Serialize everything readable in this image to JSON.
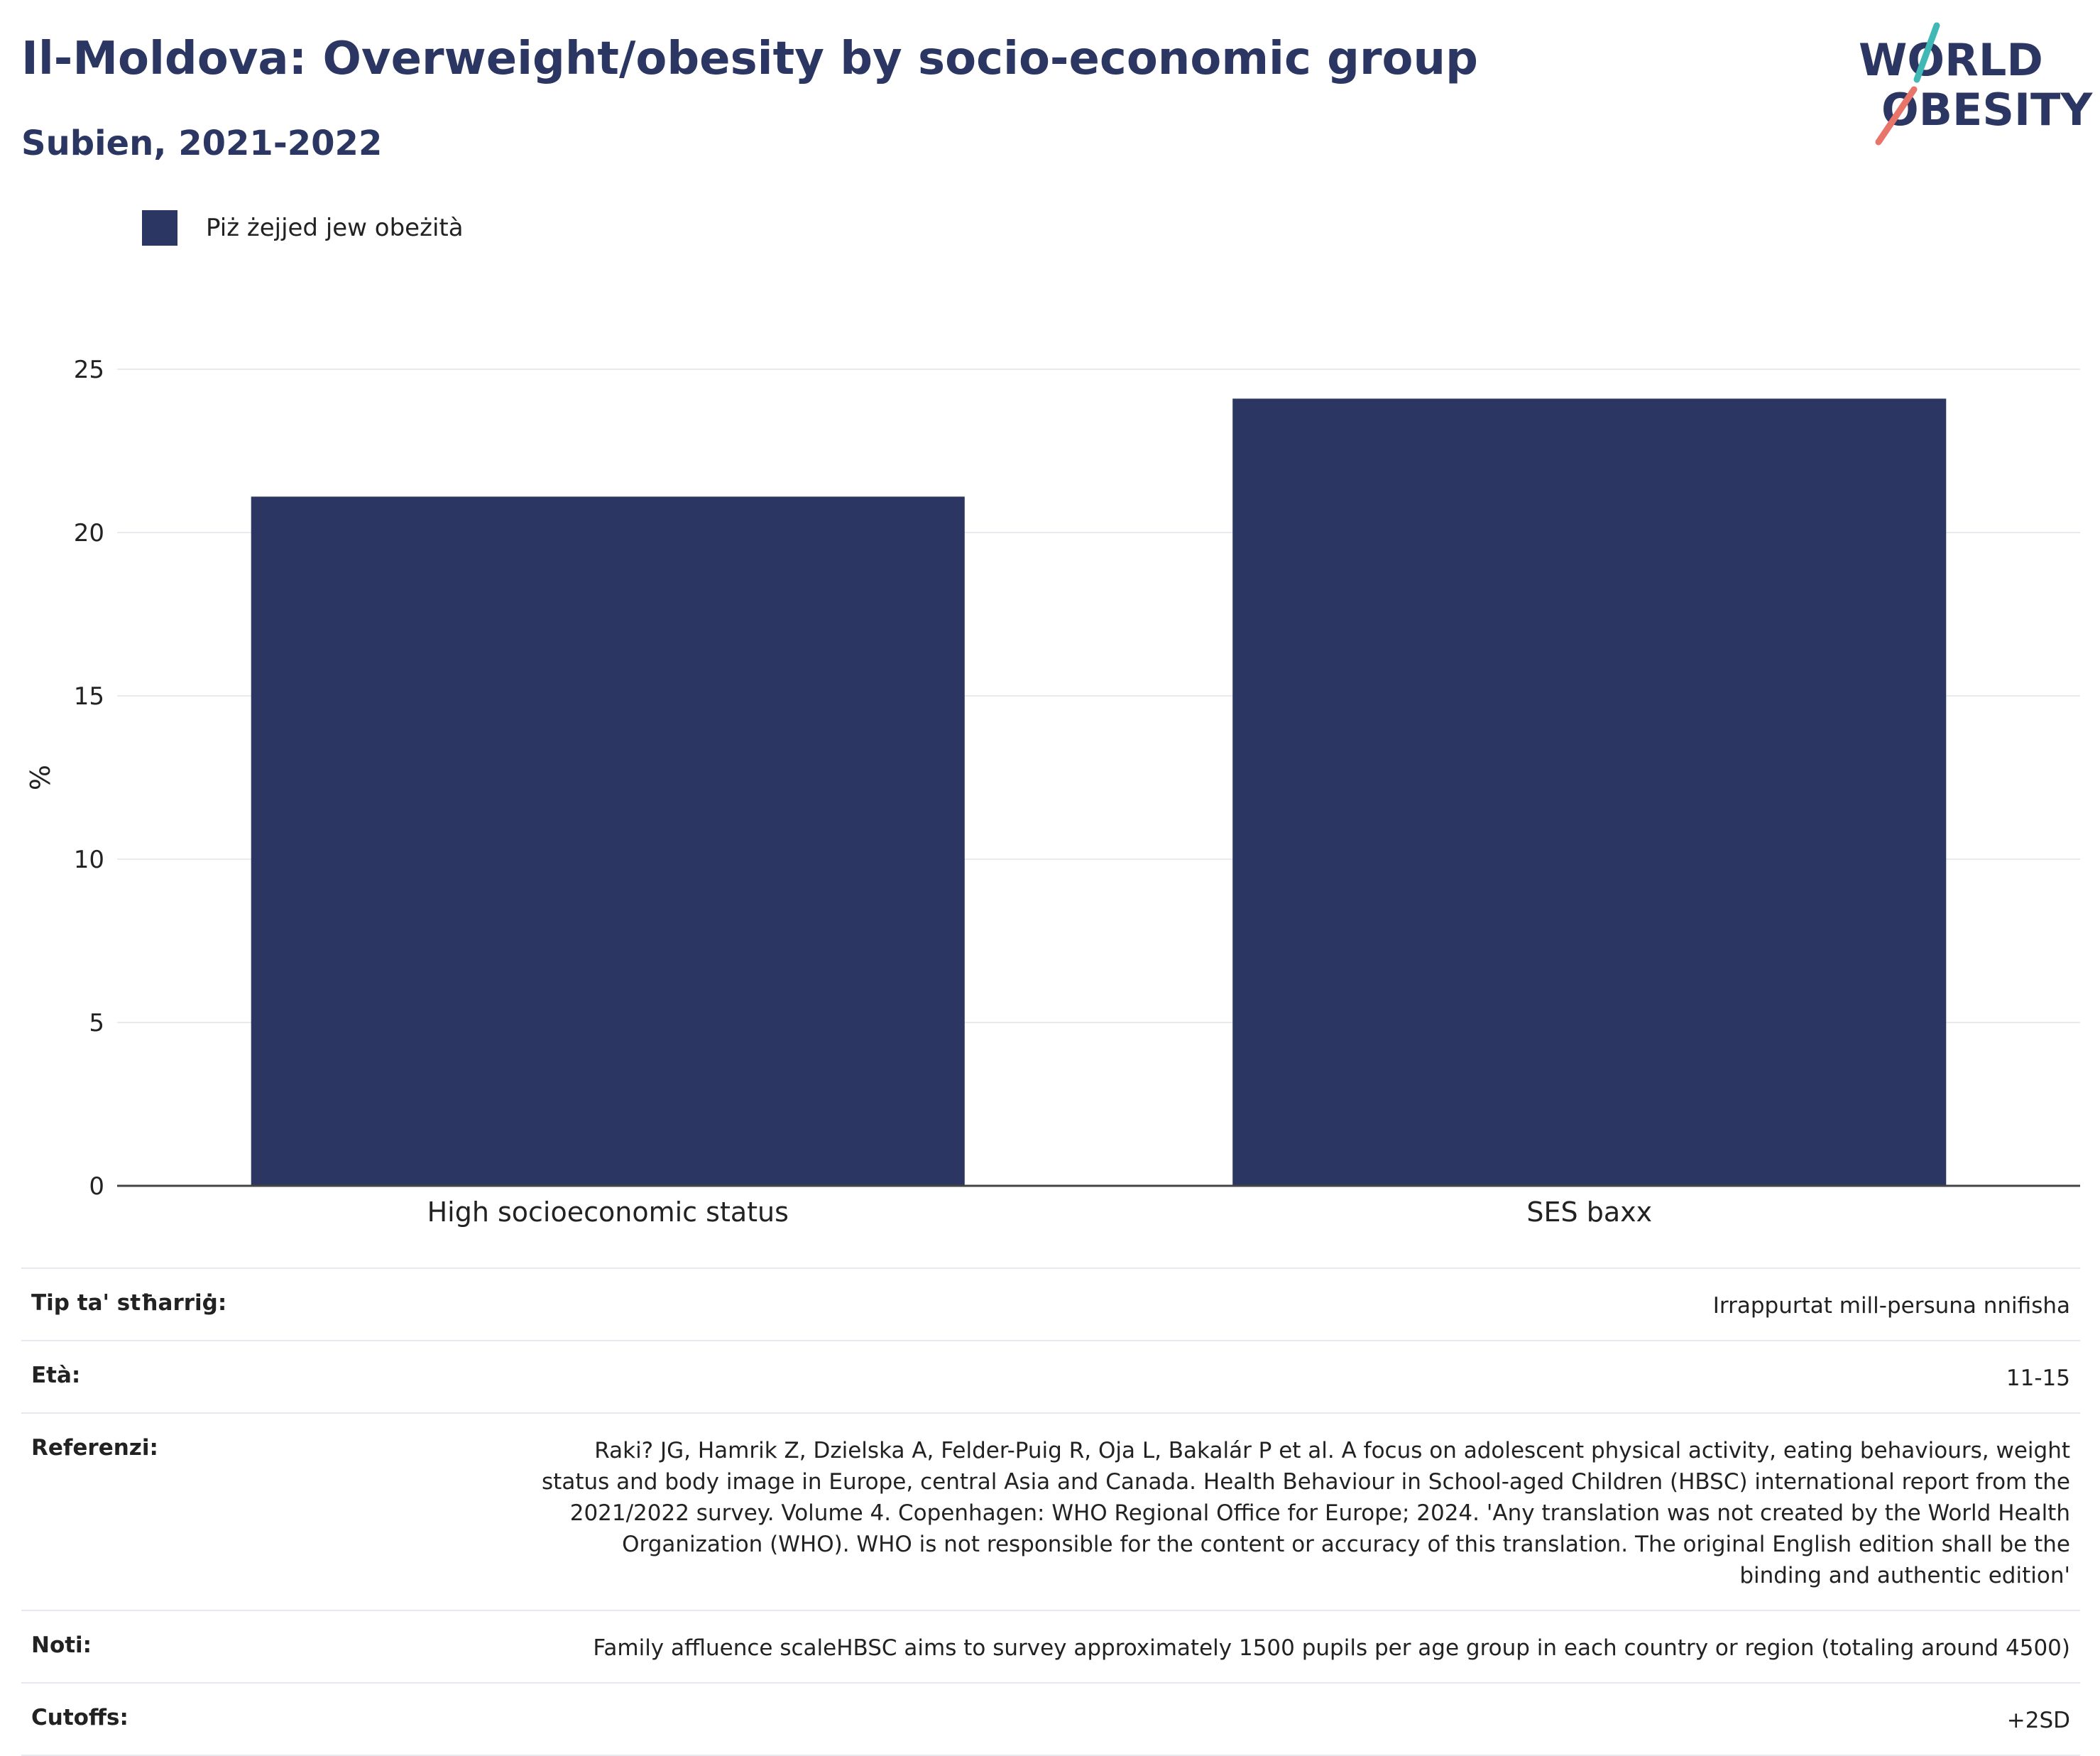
{
  "header": {
    "title": "Il-Moldova: Overweight/obesity by socio-economic group",
    "subtitle": "Subien, 2021-2022"
  },
  "logo": {
    "line1": "WORLD",
    "line2": "OBESITY"
  },
  "colors": {
    "bar": "#2b3762",
    "accent_teal": "#3fb8b6",
    "accent_coral": "#e8746a",
    "grid": "#e8eaf0"
  },
  "chart_data": {
    "type": "bar",
    "categories": [
      "High socioeconomic status",
      "SES baxx"
    ],
    "series": [
      {
        "name": "Piż żejjed jew obeżità",
        "values": [
          21.1,
          24.1
        ]
      }
    ],
    "ylabel": "%",
    "ylim": [
      0,
      25
    ],
    "yticks": [
      0,
      5,
      10,
      15,
      20,
      25
    ],
    "grid": true,
    "legend": "top-left"
  },
  "meta": [
    {
      "label": "Tip ta' stħarriġ:",
      "value": "Irrappurtat mill-persuna nnifisha"
    },
    {
      "label": "Età:",
      "value": "11-15"
    },
    {
      "label": "Referenzi:",
      "value": "Raki? JG, Hamrik Z, Dzielska A, Felder-Puig R, Oja L, Bakalár P et al. A focus on adolescent physical activity, eating behaviours, weight status and body image in Europe, central Asia and Canada. Health Behaviour in School-aged Children (HBSC) international report from the 2021/2022 survey. Volume 4. Copenhagen: WHO Regional Office for Europe; 2024. 'Any translation was not created by the World Health Organization (WHO). WHO is not responsible for the content or accuracy of this translation. The original English edition shall be the binding and authentic edition'"
    },
    {
      "label": "Noti:",
      "value": "Family affluence scaleHBSC aims to survey approximately 1500 pupils per age group in each country or region (totaling around 4500)"
    },
    {
      "label": "Cutoffs:",
      "value": "+2SD"
    }
  ]
}
